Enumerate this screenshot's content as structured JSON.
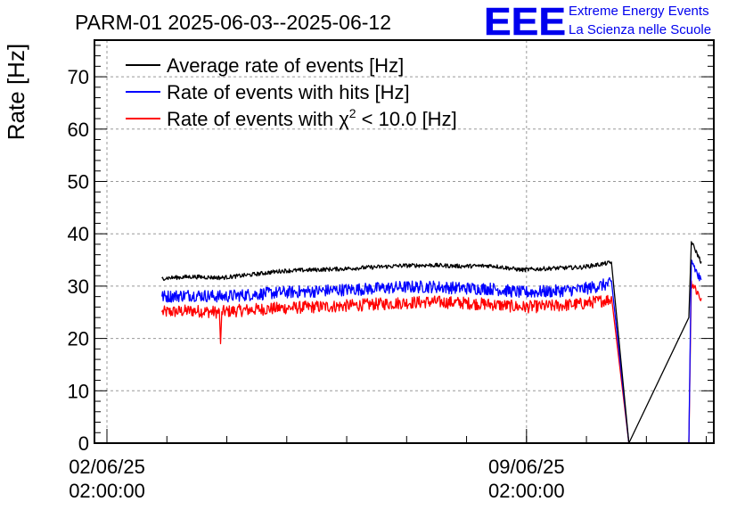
{
  "chart_data": {
    "type": "line",
    "title": "PARM-01 2025-06-03--2025-06-12",
    "ylabel": "Rate [Hz]",
    "xlabel": "",
    "ylim": [
      0,
      77
    ],
    "yticks": [
      0,
      10,
      20,
      30,
      40,
      50,
      60,
      70
    ],
    "xlim": [
      "2025-06-01T21:00:00",
      "2025-06-12T05:00:00"
    ],
    "xtick_labels": [
      {
        "x": "2025-06-02T02:00:00",
        "line1": "02/06/25",
        "line2": "02:00:00"
      },
      {
        "x": "2025-06-09T02:00:00",
        "line1": "09/06/25",
        "line2": "02:00:00"
      }
    ],
    "grid": true,
    "legend_position": "top-left",
    "series": [
      {
        "name": "Average rate of events [Hz]",
        "color": "#000000",
        "noise": 0.4,
        "points": [
          [
            "2025-06-03T00:00:00",
            31.5
          ],
          [
            "2025-06-03T12:00:00",
            31.8
          ],
          [
            "2025-06-04T00:00:00",
            31.6
          ],
          [
            "2025-06-04T12:00:00",
            32.2
          ],
          [
            "2025-06-05T00:00:00",
            32.9
          ],
          [
            "2025-06-05T12:00:00",
            33.1
          ],
          [
            "2025-06-06T00:00:00",
            33.3
          ],
          [
            "2025-06-06T12:00:00",
            33.6
          ],
          [
            "2025-06-07T00:00:00",
            33.9
          ],
          [
            "2025-06-07T12:00:00",
            34.0
          ],
          [
            "2025-06-08T00:00:00",
            33.8
          ],
          [
            "2025-06-08T12:00:00",
            33.9
          ],
          [
            "2025-06-09T00:00:00",
            33.1
          ],
          [
            "2025-06-09T12:00:00",
            33.4
          ],
          [
            "2025-06-10T00:00:00",
            33.6
          ],
          [
            "2025-06-10T12:00:00",
            34.5
          ],
          [
            "2025-06-10T19:00:00",
            0
          ],
          [
            "2025-06-11T19:00:00",
            24
          ],
          [
            "2025-06-11T20:00:00",
            38.5
          ],
          [
            "2025-06-12T00:00:00",
            34.5
          ]
        ]
      },
      {
        "name": "Rate of events with hits [Hz]",
        "color": "#0000ff",
        "noise": 1.2,
        "points": [
          [
            "2025-06-03T00:00:00",
            28.0
          ],
          [
            "2025-06-03T12:00:00",
            28.3
          ],
          [
            "2025-06-04T00:00:00",
            28.0
          ],
          [
            "2025-06-04T12:00:00",
            28.4
          ],
          [
            "2025-06-05T00:00:00",
            28.8
          ],
          [
            "2025-06-05T12:00:00",
            29.0
          ],
          [
            "2025-06-06T00:00:00",
            29.3
          ],
          [
            "2025-06-06T12:00:00",
            29.5
          ],
          [
            "2025-06-07T00:00:00",
            29.8
          ],
          [
            "2025-06-07T12:00:00",
            29.9
          ],
          [
            "2025-06-08T00:00:00",
            29.6
          ],
          [
            "2025-06-08T12:00:00",
            29.5
          ],
          [
            "2025-06-09T00:00:00",
            28.8
          ],
          [
            "2025-06-09T12:00:00",
            29.0
          ],
          [
            "2025-06-10T00:00:00",
            29.4
          ],
          [
            "2025-06-10T12:00:00",
            30.5
          ],
          [
            "2025-06-10T19:00:00",
            0
          ],
          [
            "2025-06-11T19:00:00",
            0
          ],
          [
            "2025-06-11T20:00:00",
            35.0
          ],
          [
            "2025-06-12T00:00:00",
            30.5
          ]
        ]
      },
      {
        "name": "Rate of events with χ² < 10.0 [Hz]",
        "color": "#ff0000",
        "noise": 1.2,
        "points": [
          [
            "2025-06-03T00:00:00",
            25.0
          ],
          [
            "2025-06-03T12:00:00",
            25.3
          ],
          [
            "2025-06-03T23:00:00",
            25.0
          ],
          [
            "2025-06-03T23:30:00",
            19.0
          ],
          [
            "2025-06-04T00:00:00",
            25.1
          ],
          [
            "2025-06-04T12:00:00",
            25.5
          ],
          [
            "2025-06-05T00:00:00",
            25.8
          ],
          [
            "2025-06-05T12:00:00",
            26.0
          ],
          [
            "2025-06-06T00:00:00",
            26.2
          ],
          [
            "2025-06-06T12:00:00",
            26.5
          ],
          [
            "2025-06-07T00:00:00",
            26.8
          ],
          [
            "2025-06-07T12:00:00",
            27.0
          ],
          [
            "2025-06-08T00:00:00",
            26.8
          ],
          [
            "2025-06-08T12:00:00",
            26.5
          ],
          [
            "2025-06-09T00:00:00",
            26.0
          ],
          [
            "2025-06-09T12:00:00",
            26.2
          ],
          [
            "2025-06-10T00:00:00",
            26.6
          ],
          [
            "2025-06-10T12:00:00",
            27.5
          ],
          [
            "2025-06-10T19:00:00",
            0
          ],
          [
            "2025-06-11T19:00:00",
            0
          ],
          [
            "2025-06-11T20:00:00",
            31.0
          ],
          [
            "2025-06-12T00:00:00",
            27.5
          ]
        ]
      }
    ]
  },
  "logo": {
    "mark": "EEE",
    "line1": "Extreme Energy Events",
    "line2": "La Scienza nelle Scuole",
    "color": "#0000ee"
  }
}
